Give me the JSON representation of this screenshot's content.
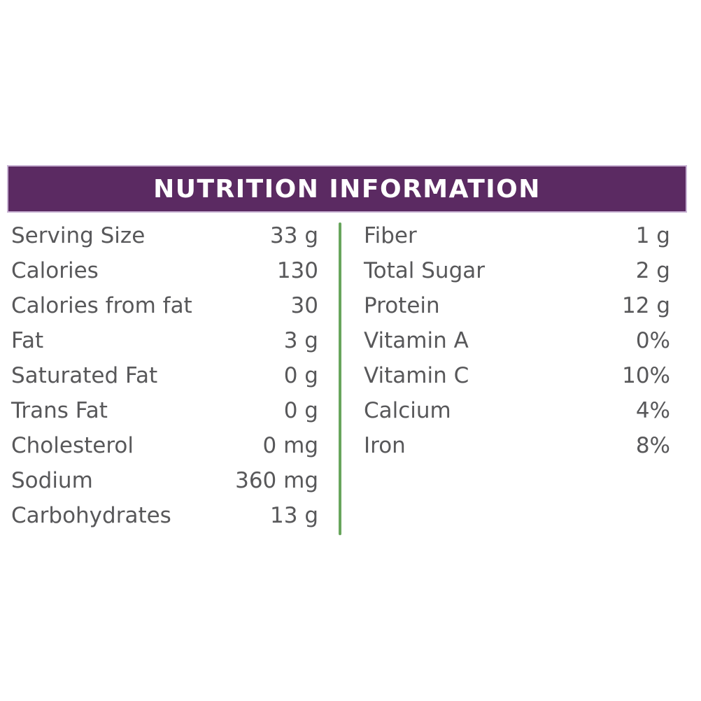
{
  "header": {
    "title": "NUTRITION INFORMATION"
  },
  "colors": {
    "header_bg": "#5b2a62",
    "header_border": "#c9b4d4",
    "header_text": "#ffffff",
    "body_text": "#58585a",
    "divider": "#68a55c",
    "background": "#ffffff"
  },
  "table": {
    "left_column": [
      {
        "label": "Serving Size",
        "value": "33 g"
      },
      {
        "label": "Calories",
        "value": "130"
      },
      {
        "label": "Calories from fat",
        "value": "30"
      },
      {
        "label": "Fat",
        "value": "3 g"
      },
      {
        "label": "Saturated Fat",
        "value": "0 g"
      },
      {
        "label": "Trans Fat",
        "value": "0 g"
      },
      {
        "label": "Cholesterol",
        "value": "0 mg"
      },
      {
        "label": "Sodium",
        "value": "360 mg"
      },
      {
        "label": "Carbohydrates",
        "value": "13 g"
      }
    ],
    "right_column": [
      {
        "label": "Fiber",
        "value": "1 g"
      },
      {
        "label": "Total Sugar",
        "value": "2 g"
      },
      {
        "label": "Protein",
        "value": "12 g"
      },
      {
        "label": "Vitamin A",
        "value": "0%"
      },
      {
        "label": "Vitamin C",
        "value": "10%"
      },
      {
        "label": "Calcium",
        "value": "4%"
      },
      {
        "label": "Iron",
        "value": "8%"
      }
    ]
  }
}
